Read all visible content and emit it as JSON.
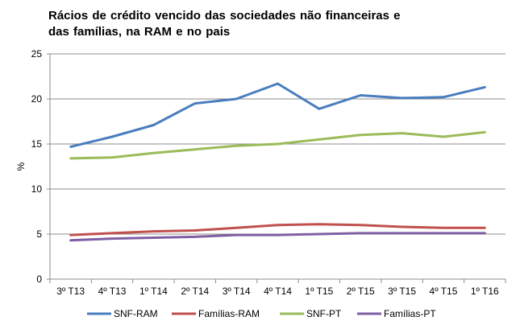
{
  "chart_data": {
    "type": "line",
    "title_lines": [
      "Rácios de crédito vencido  das sociedades  não financeiras e",
      "das famílias, na RAM e no pais"
    ],
    "xlabel": "",
    "ylabel": "%",
    "ylim": [
      0,
      25
    ],
    "yticks": [
      0,
      5,
      10,
      15,
      20,
      25
    ],
    "grid": true,
    "legend_position": "bottom",
    "categories": [
      "3º T13",
      "4º T13",
      "1º T14",
      "2º T14",
      "3º T14",
      "4º T14",
      "1º T15",
      "2º T15",
      "3º T15",
      "4º T15",
      "1º T16"
    ],
    "series": [
      {
        "name": "SNF-RAM",
        "color": "#4a7dbf",
        "values": [
          14.7,
          15.8,
          17.1,
          19.5,
          20.0,
          21.7,
          18.9,
          20.4,
          20.1,
          20.2,
          21.3
        ]
      },
      {
        "name": "Famílias-RAM",
        "color": "#c0504d",
        "values": [
          4.9,
          5.1,
          5.3,
          5.4,
          5.7,
          6.0,
          6.1,
          6.0,
          5.8,
          5.7,
          5.7
        ]
      },
      {
        "name": "SNF-PT",
        "color": "#9bbb59",
        "values": [
          13.4,
          13.5,
          14.0,
          14.4,
          14.8,
          15.0,
          15.5,
          16.0,
          16.2,
          15.8,
          16.3
        ]
      },
      {
        "name": "Famílias-PT",
        "color": "#7f5ea3",
        "values": [
          4.3,
          4.5,
          4.6,
          4.7,
          4.9,
          4.9,
          5.0,
          5.1,
          5.1,
          5.1,
          5.1
        ]
      }
    ]
  }
}
